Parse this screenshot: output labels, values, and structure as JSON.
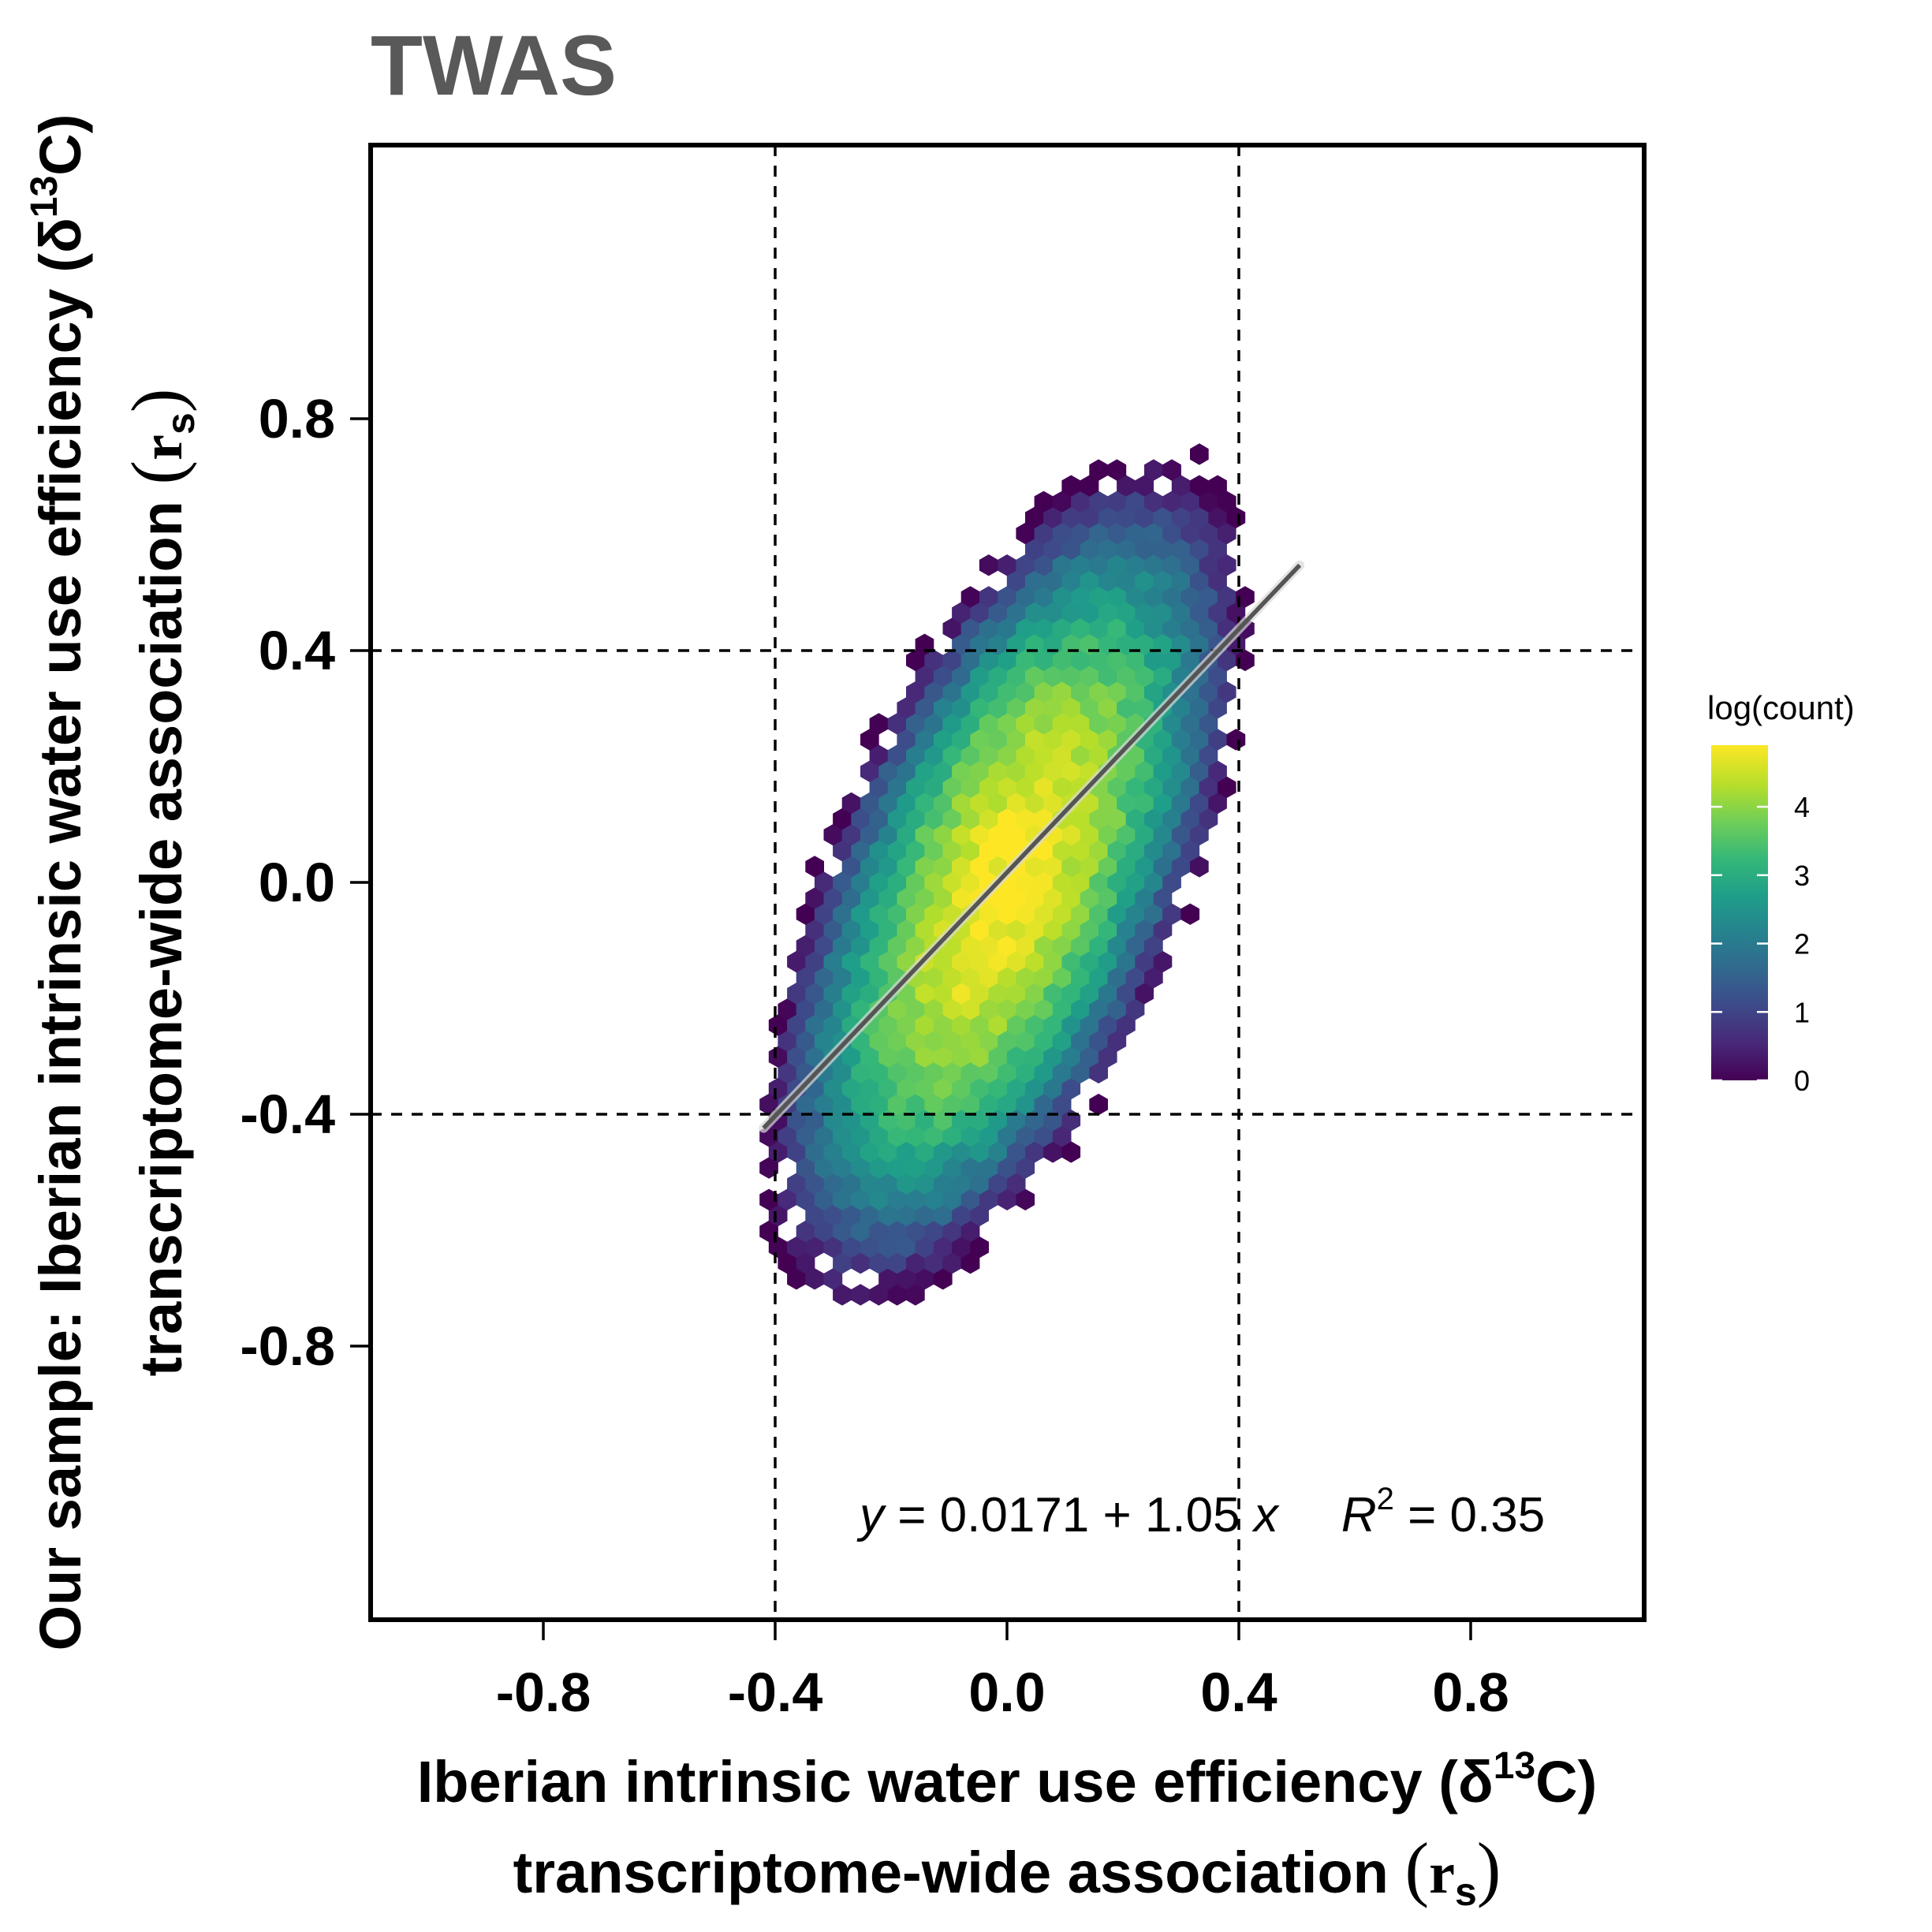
{
  "chart_data": {
    "type": "heatmap",
    "subtype": "hexbin",
    "title": "TWAS",
    "xlabel": {
      "line1_prefix": "Iberian intrinsic water use efficiency (δ",
      "line1_sup": "13",
      "line1_suffix": "C)",
      "line2_prefix": "transcriptome-wide association ",
      "line2_paren_open": "(",
      "line2_var": "r",
      "line2_sub": "s",
      "line2_paren_close": ")"
    },
    "ylabel": {
      "line1_prefix": "Our sample: Iberian intrinsic water use efficiency (δ",
      "line1_sup": "13",
      "line1_suffix": "C)",
      "line2_prefix": "transcriptome-wide association ",
      "line2_paren_open": "(",
      "line2_var": "r",
      "line2_sub": "s",
      "line2_paren_close": ")"
    },
    "xlim": [
      -0.88,
      0.88
    ],
    "ylim": [
      -0.88,
      0.88
    ],
    "xticks": [
      "-0.8",
      "-0.4",
      "0.0",
      "0.4",
      "0.8"
    ],
    "yticks": [
      "0.8",
      "0.4",
      "0.0",
      "-0.4",
      "-0.8"
    ],
    "grid": false,
    "reference_lines": {
      "vertical": [
        -0.4,
        0.4
      ],
      "horizontal": [
        -0.4,
        0.4
      ],
      "style": "dashed"
    },
    "regression": {
      "intercept": 0.0171,
      "slope": 1.05,
      "x_range": [
        -0.42,
        0.505
      ],
      "label": {
        "y": "y",
        "eq": " = 0.0171 + 1.05 ",
        "x": "x",
        "r": "R",
        "r_sup": "2",
        "r_val": " = 0.35"
      }
    },
    "density_model": {
      "description": "hexbin counts on log scale, correlated cloud along regression line",
      "center": [
        0.0,
        0.0
      ],
      "sd_x": 0.165,
      "sd_y": 0.29,
      "corr": 0.6,
      "peak_log_count": 4.9,
      "cloud_extent_x": [
        -0.42,
        0.5
      ],
      "cloud_extent_y": [
        -0.78,
        0.78
      ]
    },
    "legend": {
      "title": "log(count)",
      "position": "right",
      "range": [
        0,
        4.9
      ],
      "ticks": [
        "0",
        "1",
        "2",
        "3",
        "4"
      ]
    },
    "colors": {
      "palette": [
        "#440154",
        "#482878",
        "#3e4989",
        "#31688e",
        "#26828e",
        "#1f9e89",
        "#35b779",
        "#6ece58",
        "#b5de2b",
        "#fde725"
      ],
      "axis": "#000000",
      "title": "#595959",
      "regression_line": "#555555"
    }
  }
}
